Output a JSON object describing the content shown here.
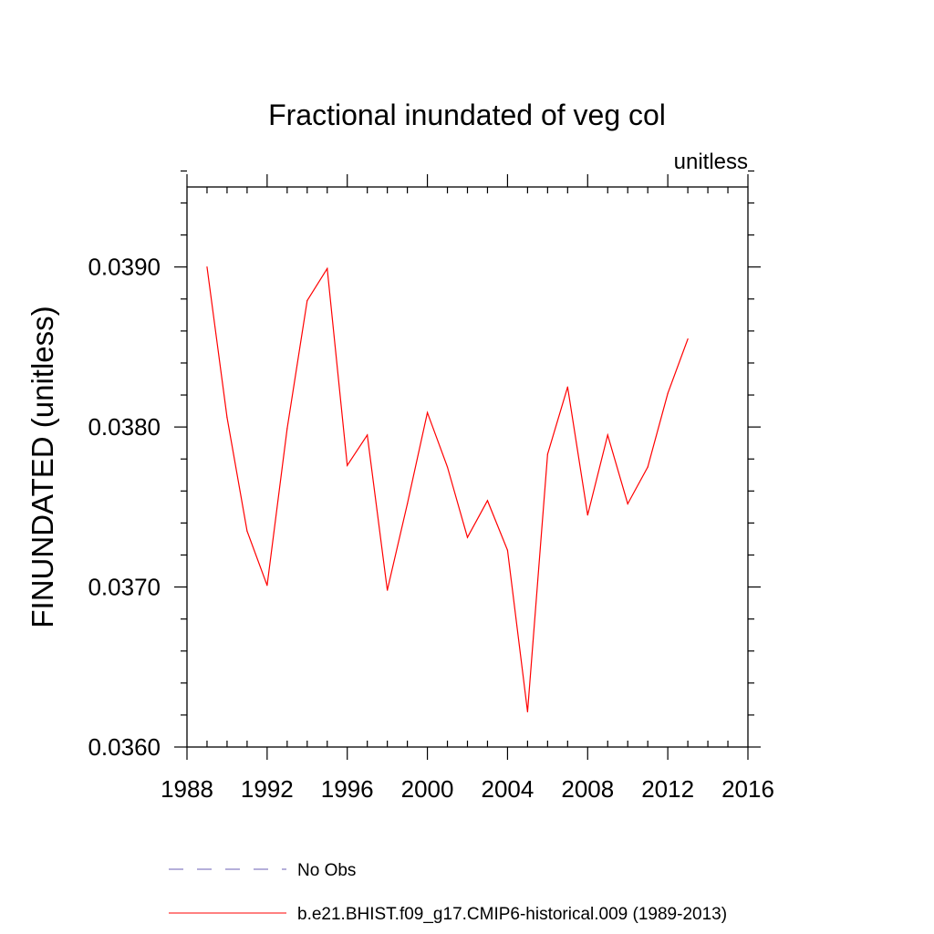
{
  "chart_data": {
    "type": "line",
    "title": "Fractional inundated of veg col",
    "units": "unitless",
    "ylabel": "FINUNDATED  (unitless)",
    "xlabel": "",
    "xlim": [
      1988,
      2016
    ],
    "ylim": [
      0.036,
      0.0395
    ],
    "x_major_ticks": [
      1988,
      1992,
      1996,
      2000,
      2004,
      2008,
      2012,
      2016
    ],
    "x_tick_labels": [
      "1988",
      "1992",
      "1996",
      "2000",
      "2004",
      "2008",
      "2012",
      "2016"
    ],
    "x_minor_step": 1,
    "y_major_ticks": [
      0.036,
      0.037,
      0.038,
      0.039
    ],
    "y_tick_labels": [
      "0.0360",
      "0.0370",
      "0.0380",
      "0.0390"
    ],
    "y_minor_step": 0.0002,
    "series": [
      {
        "name": "b.e21.BHIST.f09_g17.CMIP6-historical.009 (1989-2013)",
        "color": "#ff0000",
        "style": "solid",
        "x": [
          1989,
          1990,
          1991,
          1992,
          1993,
          1994,
          1995,
          1996,
          1997,
          1998,
          1999,
          2000,
          2001,
          2002,
          2003,
          2004,
          2005,
          2006,
          2007,
          2008,
          2009,
          2010,
          2011,
          2012,
          2013
        ],
        "values": [
          0.039,
          0.03806,
          0.03735,
          0.03701,
          0.03799,
          0.03879,
          0.03899,
          0.03776,
          0.03795,
          0.03698,
          0.03752,
          0.03809,
          0.03775,
          0.03731,
          0.03754,
          0.03723,
          0.03622,
          0.03783,
          0.03825,
          0.03745,
          0.03795,
          0.03752,
          0.03775,
          0.03821,
          0.03855
        ]
      }
    ],
    "legend": [
      {
        "label": "No Obs",
        "color": "#6b5fb5",
        "style": "dashed"
      },
      {
        "label": "b.e21.BHIST.f09_g17.CMIP6-historical.009 (1989-2013)",
        "color": "#ff0000",
        "style": "solid"
      }
    ],
    "legend_position": "bottom"
  }
}
